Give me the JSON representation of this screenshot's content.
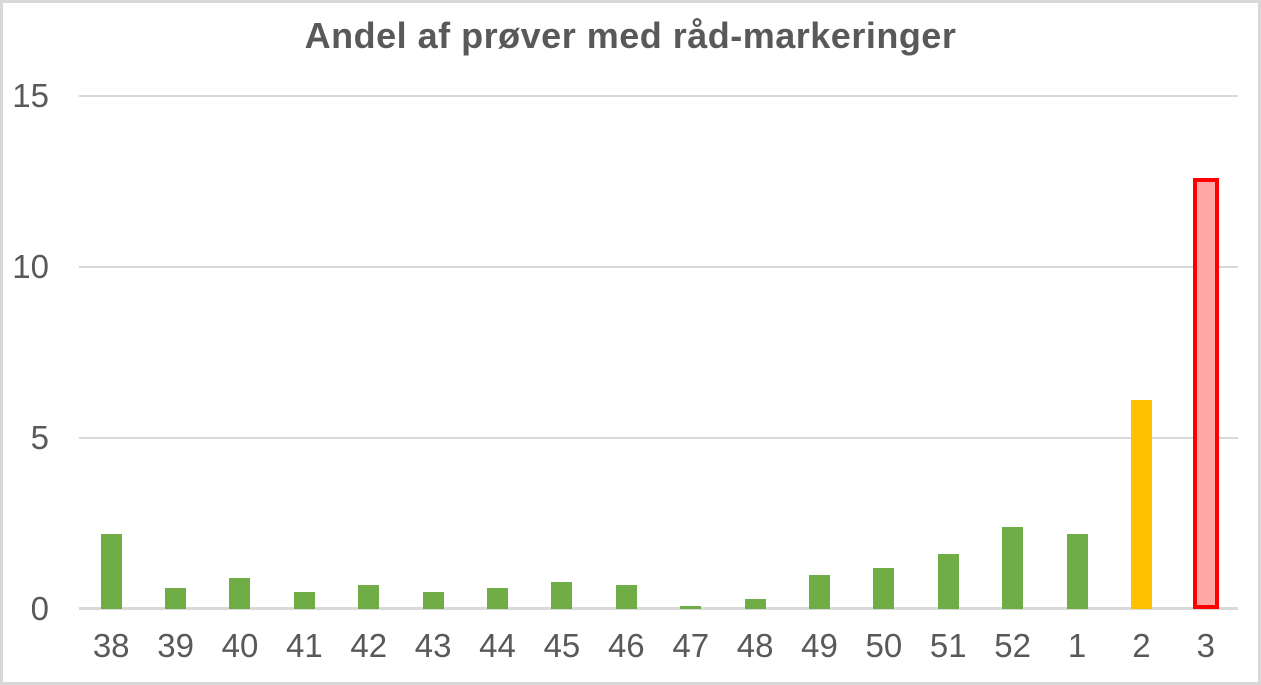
{
  "chart_data": {
    "type": "bar",
    "title": "Andel af prøver med råd-markeringer",
    "categories": [
      "38",
      "39",
      "40",
      "41",
      "42",
      "43",
      "44",
      "45",
      "46",
      "47",
      "48",
      "49",
      "50",
      "51",
      "52",
      "1",
      "2",
      "3"
    ],
    "values": [
      2.2,
      0.6,
      0.9,
      0.5,
      0.7,
      0.5,
      0.6,
      0.8,
      0.7,
      0.1,
      0.3,
      1.0,
      1.2,
      1.6,
      2.4,
      2.2,
      6.1,
      12.6
    ],
    "bar_styles": [
      "green",
      "green",
      "green",
      "green",
      "green",
      "green",
      "green",
      "green",
      "green",
      "green",
      "green",
      "green",
      "green",
      "green",
      "green",
      "green",
      "yellow",
      "red-outline"
    ],
    "xlabel": "",
    "ylabel": "",
    "y_ticks": [
      0,
      5,
      10,
      15
    ],
    "ylim": [
      0,
      15
    ],
    "grid": "horizontal",
    "legend": "none",
    "colors": {
      "green": "#70AD47",
      "yellow": "#FFC000",
      "red_fill": "#FFA6A6",
      "red_border": "#FF0000",
      "gridline": "#D9D9D9",
      "axis_text": "#595959",
      "title_text": "#595959"
    }
  }
}
